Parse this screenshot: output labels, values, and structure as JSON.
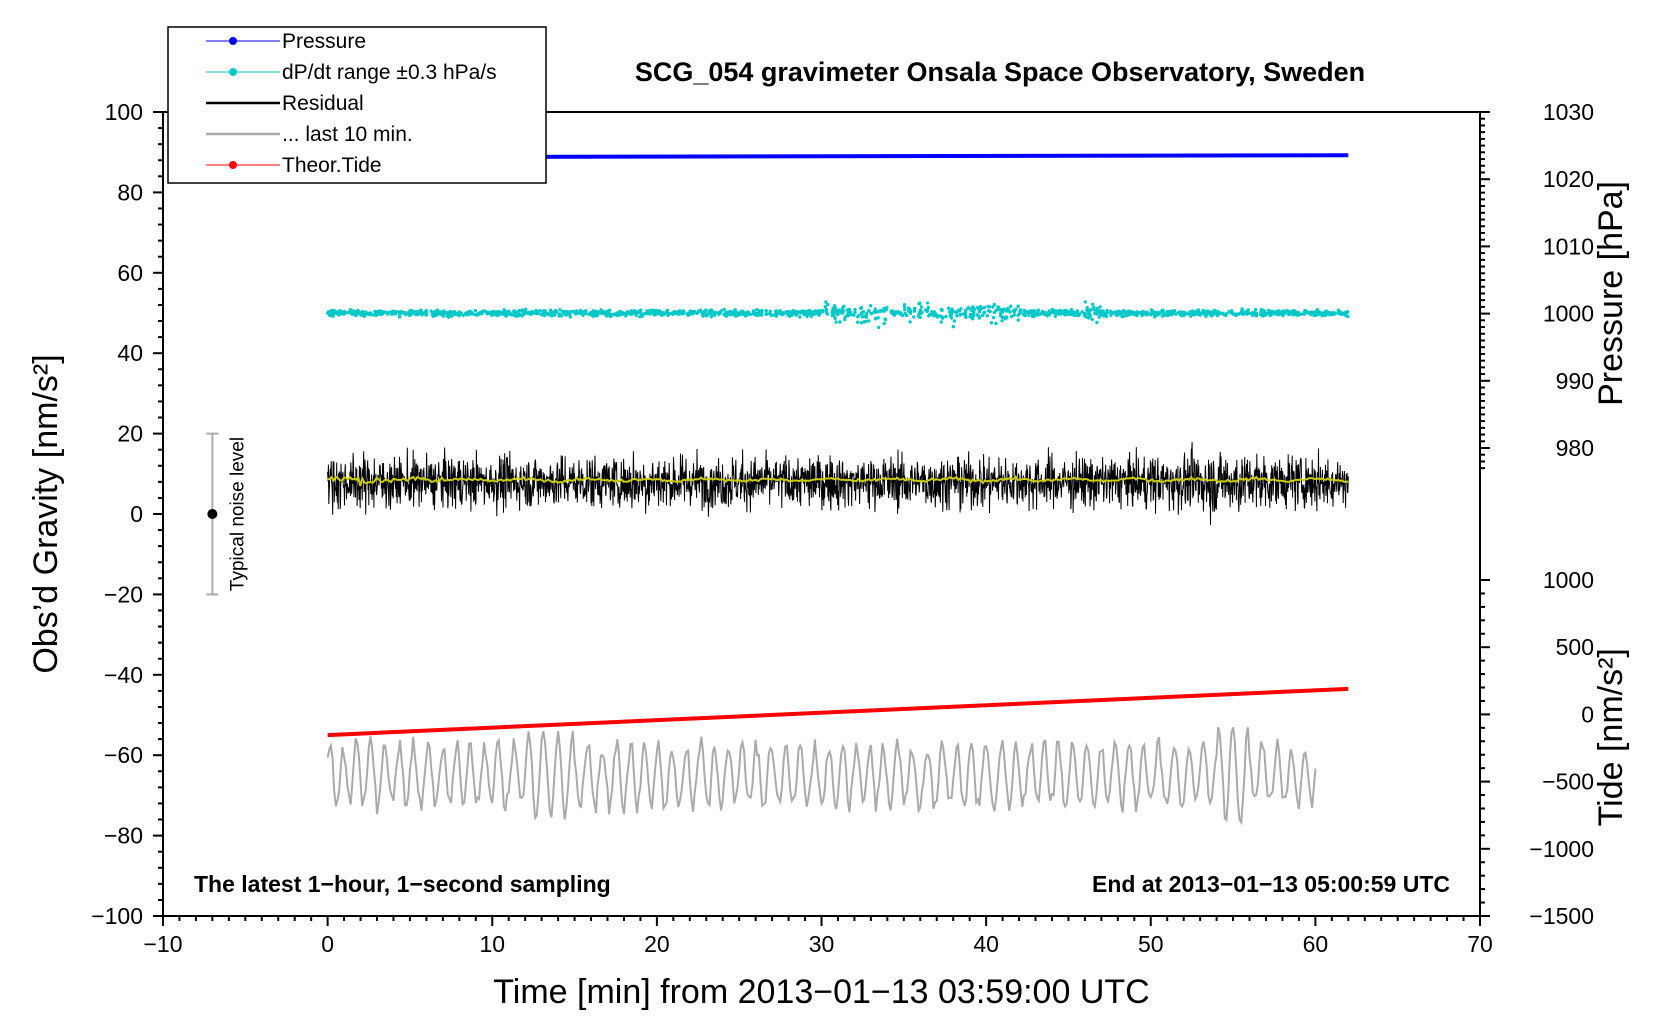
{
  "chart_data": {
    "type": "line",
    "title": "SCG_054 gravimeter Onsala Space Observatory, Sweden",
    "xlabel": "Time [min] from 2013−01−13 03:59:00 UTC",
    "ylabel_left": "Obs’d Gravity [nm/s²]",
    "ylabel_right_top": "Pressure [hPa]",
    "ylabel_right_bottom": "Tide [nm/s²]",
    "xlim": [
      -10,
      70
    ],
    "ylim": [
      -100,
      100
    ],
    "pressure_axis_range": [
      975,
      1030
    ],
    "tide_axis_range": [
      -1500,
      1000
    ],
    "x_ticks": [
      -10,
      0,
      10,
      20,
      30,
      40,
      50,
      60,
      70
    ],
    "x_tick_labels": [
      "−10",
      "0",
      "10",
      "20",
      "30",
      "40",
      "50",
      "60",
      "70"
    ],
    "y_ticks": [
      -100,
      -80,
      -60,
      -40,
      -20,
      0,
      20,
      40,
      60,
      80,
      100
    ],
    "y_tick_labels": [
      "−100",
      "−80",
      "−60",
      "−40",
      "−20",
      "0",
      "20",
      "40",
      "60",
      "80",
      "100"
    ],
    "pressure_ticks": [
      980,
      990,
      1000,
      1010,
      1020,
      1030
    ],
    "pressure_tick_labels": [
      "980",
      "990",
      "1000",
      "1010",
      "1020",
      "1030"
    ],
    "tide_ticks": [
      -1500,
      -1000,
      -500,
      0,
      500,
      1000
    ],
    "tide_tick_labels": [
      "−1500",
      "−1000",
      "−500",
      "0",
      "500",
      "1000"
    ],
    "legend": [
      "Pressure",
      "dP/dt range ±0.3 hPa/s",
      "Residual",
      "... last 10 min.",
      "Theor.Tide"
    ],
    "legend_location": "top-left",
    "series": [
      {
        "name": "Pressure",
        "color": "#0000ff",
        "x": [
          0,
          62
        ],
        "y": [
          89,
          89
        ],
        "note": "pressure ~1023 hPa, nearly constant"
      },
      {
        "name": "dP/dt range ±0.3 hPa/s",
        "color": "#00c8c8",
        "x_range": [
          0,
          62
        ],
        "center": 50,
        "spread": 1.5
      },
      {
        "name": "Residual",
        "color": "#000000",
        "x_range": [
          0,
          62
        ],
        "center": 8,
        "min": -11,
        "max": 28
      },
      {
        "name": "Residual smoothed",
        "color": "#cccc00",
        "x_range": [
          0,
          62
        ],
        "center": 8.5
      },
      {
        "name": "... last 10 min.",
        "color": "#aaaaaa",
        "x_range": [
          0,
          60
        ],
        "center": -65,
        "min": -81,
        "max": -43
      },
      {
        "name": "Theor.Tide",
        "color": "#ff0000",
        "x": [
          0,
          62
        ],
        "y": [
          -55,
          -43.5
        ]
      }
    ],
    "noise_bar": {
      "label": "Typical noise level",
      "x": -7,
      "center": 0,
      "low": -20,
      "high": 20
    },
    "annotations": {
      "bottom_left": "The latest 1−hour, 1−second sampling",
      "bottom_right": "End at 2013−01−13 05:00:59 UTC"
    }
  }
}
